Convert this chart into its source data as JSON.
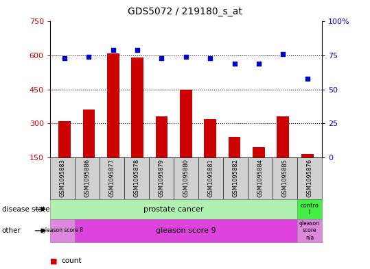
{
  "title": "GDS5072 / 219180_s_at",
  "samples": [
    "GSM1095883",
    "GSM1095886",
    "GSM1095877",
    "GSM1095878",
    "GSM1095879",
    "GSM1095880",
    "GSM1095881",
    "GSM1095882",
    "GSM1095884",
    "GSM1095885",
    "GSM1095876"
  ],
  "counts": [
    310,
    360,
    610,
    590,
    330,
    450,
    320,
    240,
    195,
    330,
    165
  ],
  "percentiles": [
    73,
    74,
    79,
    79,
    73,
    74,
    73,
    69,
    69,
    76,
    58
  ],
  "ylim_left": [
    150,
    750
  ],
  "ylim_right": [
    0,
    100
  ],
  "yticks_left": [
    150,
    300,
    450,
    600,
    750
  ],
  "yticks_right": [
    0,
    25,
    50,
    75,
    100
  ],
  "bar_color": "#cc0000",
  "dot_color": "#0000cc",
  "bar_width": 0.5,
  "pc_color": "#b0f0b0",
  "control_color": "#44ee44",
  "gleason8_color": "#dd88dd",
  "gleason9_color": "#dd44dd",
  "gleasonNA_color": "#dd88dd",
  "legend_count_color": "#cc0000",
  "legend_pct_color": "#0000cc",
  "background_color": "#ffffff",
  "plot_bg_color": "#ffffff",
  "tick_bg_color": "#d0d0d0"
}
